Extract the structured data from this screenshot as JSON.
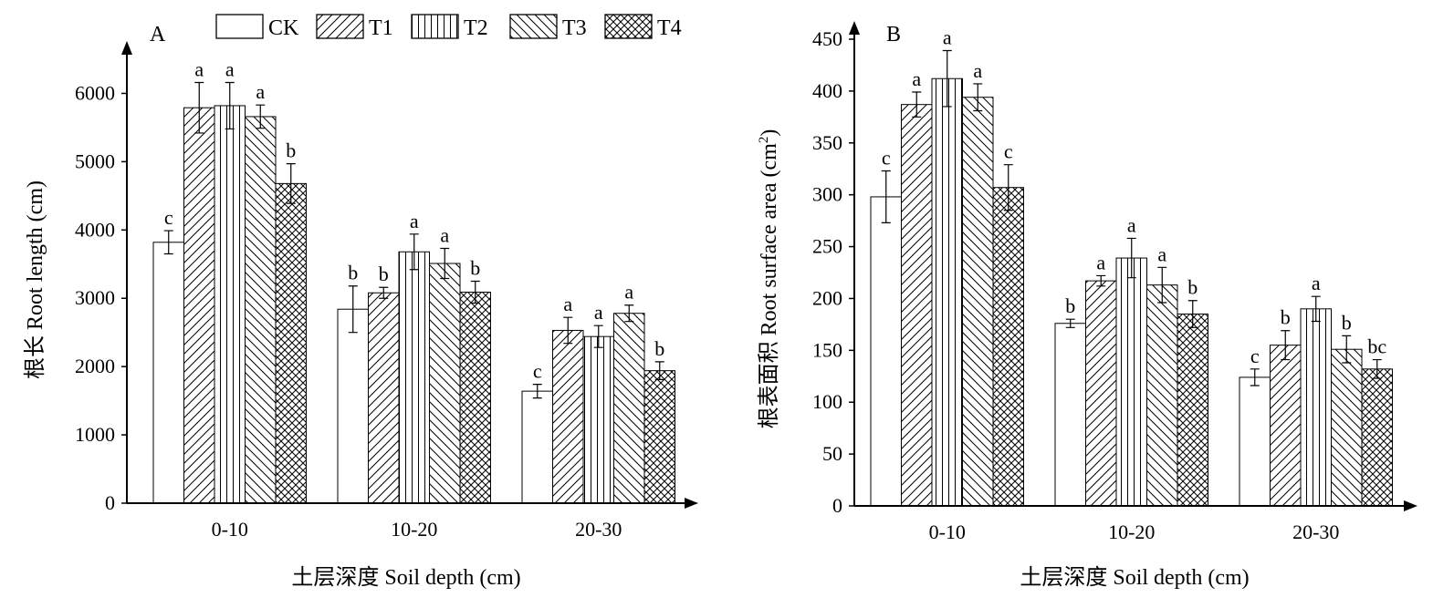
{
  "legend": [
    "CK",
    "T1",
    "T2",
    "T3",
    "T4"
  ],
  "chart_data": [
    {
      "type": "bar",
      "panel_label": "A",
      "categories": [
        "0-10",
        "10-20",
        "20-30"
      ],
      "xlabel": "土层深度 Soil depth (cm)",
      "ylabel": "根长 Root length (cm)",
      "ylim": [
        0,
        6500
      ],
      "yticks": [
        0,
        1000,
        2000,
        3000,
        4000,
        5000,
        6000
      ],
      "series": [
        {
          "name": "CK",
          "values": [
            3820,
            2840,
            1640
          ],
          "errors": [
            170,
            340,
            100
          ],
          "letters": [
            "c",
            "b",
            "c"
          ]
        },
        {
          "name": "T1",
          "values": [
            5790,
            3080,
            2530
          ],
          "errors": [
            370,
            80,
            190
          ],
          "letters": [
            "a",
            "b",
            "a"
          ]
        },
        {
          "name": "T2",
          "values": [
            5820,
            3680,
            2440
          ],
          "errors": [
            340,
            260,
            160
          ],
          "letters": [
            "a",
            "a",
            "a"
          ]
        },
        {
          "name": "T3",
          "values": [
            5660,
            3510,
            2780
          ],
          "errors": [
            170,
            220,
            120
          ],
          "letters": [
            "a",
            "a",
            "a"
          ]
        },
        {
          "name": "T4",
          "values": [
            4680,
            3090,
            1940
          ],
          "errors": [
            290,
            160,
            130
          ],
          "letters": [
            "b",
            "b",
            "b"
          ]
        }
      ]
    },
    {
      "type": "bar",
      "panel_label": "B",
      "categories": [
        "0-10",
        "10-20",
        "20-30"
      ],
      "xlabel": "土层深度 Soil depth (cm)",
      "ylabel_main": "根表面积 Root surface area (cm",
      "ylabel_sup": "2",
      "ylabel_end": ")",
      "ylim": [
        0,
        450
      ],
      "yticks": [
        0,
        50,
        100,
        150,
        200,
        250,
        300,
        350,
        400,
        450
      ],
      "series": [
        {
          "name": "CK",
          "values": [
            298,
            176,
            124
          ],
          "errors": [
            25,
            4,
            8
          ],
          "letters": [
            "c",
            "b",
            "c"
          ]
        },
        {
          "name": "T1",
          "values": [
            387,
            217,
            155
          ],
          "errors": [
            12,
            5,
            14
          ],
          "letters": [
            "a",
            "a",
            "b"
          ]
        },
        {
          "name": "T2",
          "values": [
            412,
            239,
            190
          ],
          "errors": [
            27,
            19,
            12
          ],
          "letters": [
            "a",
            "a",
            "a"
          ]
        },
        {
          "name": "T3",
          "values": [
            394,
            213,
            151
          ],
          "errors": [
            13,
            17,
            13
          ],
          "letters": [
            "a",
            "a",
            "b"
          ]
        },
        {
          "name": "T4",
          "values": [
            307,
            185,
            132
          ],
          "errors": [
            22,
            13,
            9
          ],
          "letters": [
            "c",
            "b",
            "bc"
          ]
        }
      ]
    }
  ]
}
